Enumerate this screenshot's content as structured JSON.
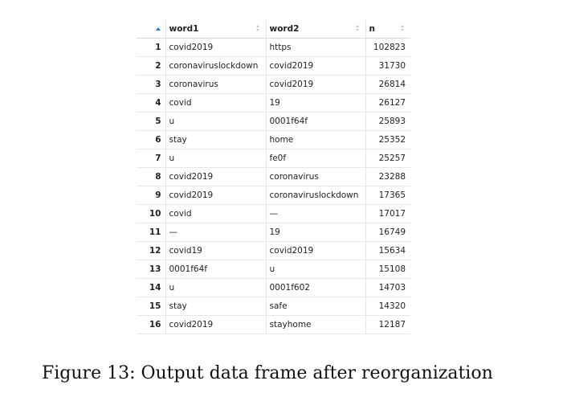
{
  "table": {
    "headers": {
      "index": "",
      "word1": "word1",
      "word2": "word2",
      "n": "n"
    },
    "rows": [
      {
        "index": "1",
        "word1": "covid2019",
        "word2": "https",
        "n": "102823"
      },
      {
        "index": "2",
        "word1": "coronaviruslockdown",
        "word2": "covid2019",
        "n": "31730"
      },
      {
        "index": "3",
        "word1": "coronavirus",
        "word2": "covid2019",
        "n": "26814"
      },
      {
        "index": "4",
        "word1": "covid",
        "word2": "19",
        "n": "26127"
      },
      {
        "index": "5",
        "word1": "u",
        "word2": "0001f64f",
        "n": "25893"
      },
      {
        "index": "6",
        "word1": "stay",
        "word2": "home",
        "n": "25352"
      },
      {
        "index": "7",
        "word1": "u",
        "word2": "fe0f",
        "n": "25257"
      },
      {
        "index": "8",
        "word1": "covid2019",
        "word2": "coronavirus",
        "n": "23288"
      },
      {
        "index": "9",
        "word1": "covid2019",
        "word2": "coronaviruslockdown",
        "n": "17365"
      },
      {
        "index": "10",
        "word1": "covid",
        "word2": "—",
        "n": "17017"
      },
      {
        "index": "11",
        "word1": "—",
        "word2": "19",
        "n": "16749"
      },
      {
        "index": "12",
        "word1": "covid19",
        "word2": "covid2019",
        "n": "15634"
      },
      {
        "index": "13",
        "word1": "0001f64f",
        "word2": "u",
        "n": "15108"
      },
      {
        "index": "14",
        "word1": "u",
        "word2": "0001f602",
        "n": "14703"
      },
      {
        "index": "15",
        "word1": "stay",
        "word2": "safe",
        "n": "14320"
      },
      {
        "index": "16",
        "word1": "covid2019",
        "word2": "stayhome",
        "n": "12187"
      }
    ]
  },
  "caption": "Figure 13: Output data frame after reorganization",
  "icons": {
    "sort_active": "sort-ascending-icon",
    "sort_inactive": "sort-toggle-icon"
  },
  "colors": {
    "sort_active": "#2e74c8",
    "grid_line": "#e6e6e6"
  }
}
